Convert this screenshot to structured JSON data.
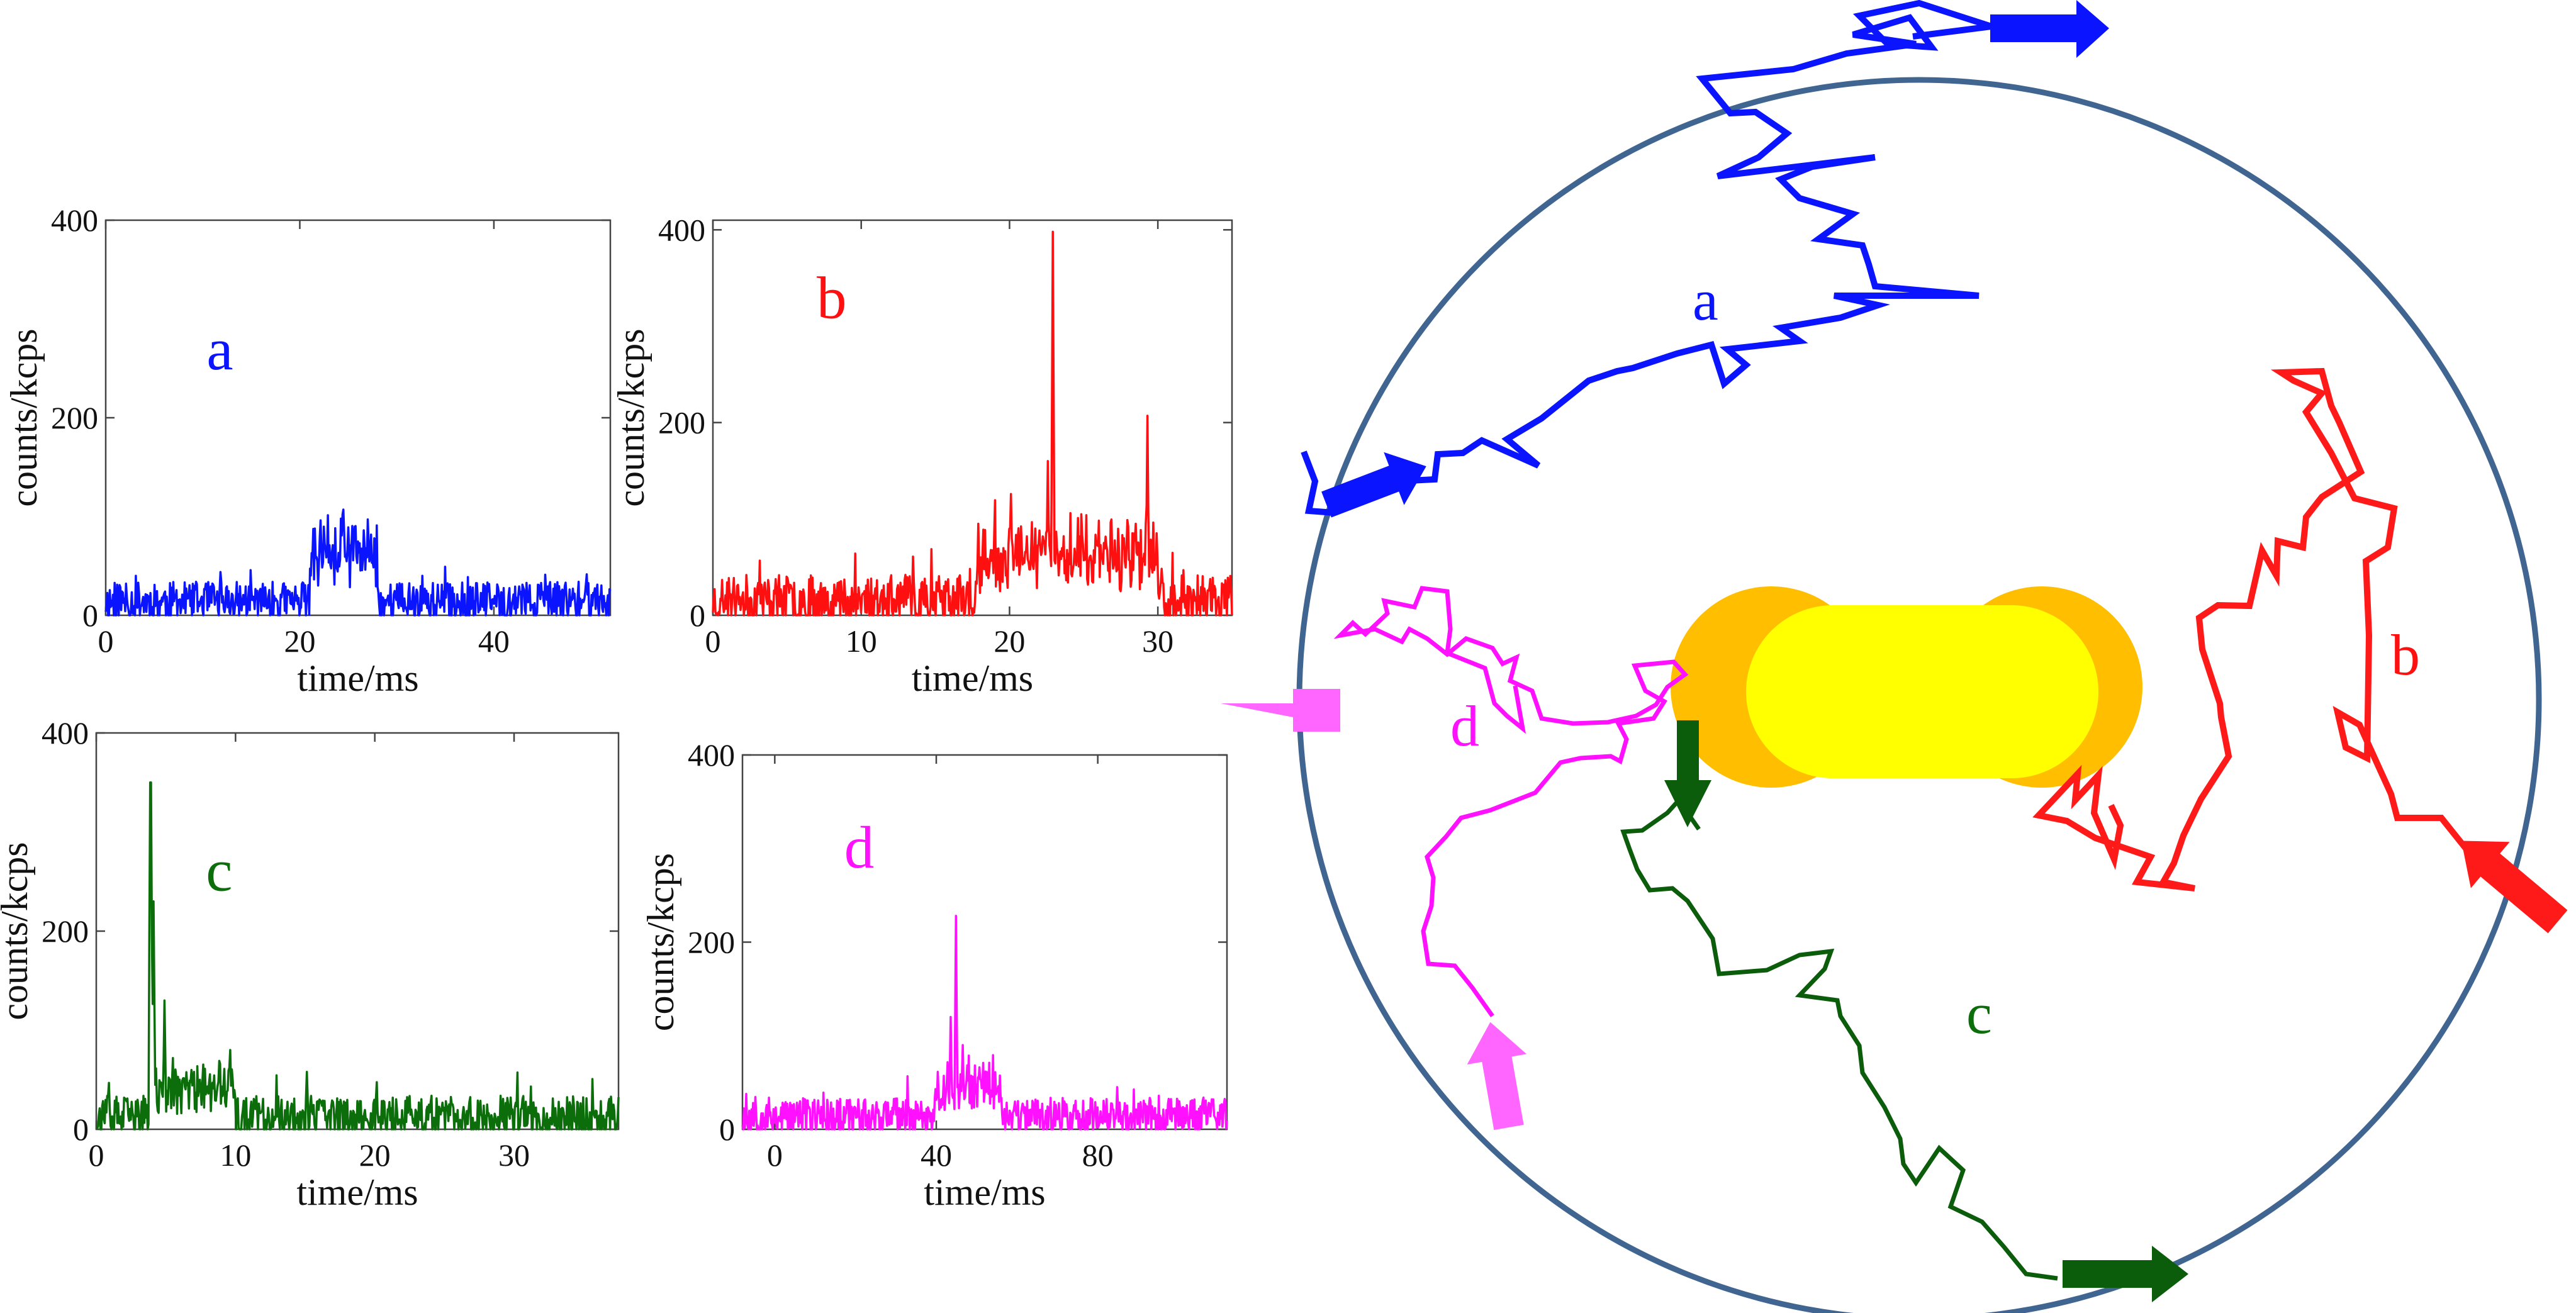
{
  "chart_data": [
    {
      "type": "line",
      "label": "a",
      "color": "#0a14ff",
      "xlabel": "time/ms",
      "ylabel": "counts/kcps",
      "xlim": [
        0,
        52
      ],
      "ylim": [
        0,
        400
      ],
      "xticks": [
        0,
        20,
        40
      ],
      "yticks": [
        0,
        200,
        400
      ],
      "burst": {
        "start": 21,
        "end": 28,
        "level": 55
      },
      "peaks": [
        {
          "x": 24.5,
          "y": 107
        }
      ],
      "baseline": {
        "level": 14,
        "amplitude": 20,
        "seed": 11
      },
      "samples": 620
    },
    {
      "type": "line",
      "label": "b",
      "color": "#ff1010",
      "xlabel": "time/ms",
      "ylabel": "counts/kcps",
      "xlim": [
        0,
        35
      ],
      "ylim": [
        0,
        410
      ],
      "xticks": [
        0,
        10,
        20,
        30
      ],
      "yticks": [
        0,
        200,
        400
      ],
      "burst": {
        "start": 17.8,
        "end": 30,
        "level": 50
      },
      "peaks": [
        {
          "x": 17.9,
          "y": 95
        },
        {
          "x": 22.9,
          "y": 398
        },
        {
          "x": 22.6,
          "y": 160
        },
        {
          "x": 29.3,
          "y": 207
        },
        {
          "x": 28.5,
          "y": 95
        }
      ],
      "baseline": {
        "level": 16,
        "amplitude": 26,
        "seed": 23
      },
      "samples": 620
    },
    {
      "type": "line",
      "label": "c",
      "color": "#0b6e0b",
      "xlabel": "time/ms",
      "ylabel": "counts/kcps",
      "xlim": [
        0,
        37.5
      ],
      "ylim": [
        0,
        400
      ],
      "xticks": [
        0,
        10,
        20,
        30
      ],
      "yticks": [
        0,
        200,
        400
      ],
      "burst": {
        "start": 4,
        "end": 10,
        "level": 30
      },
      "peaks": [
        {
          "x": 3.9,
          "y": 350
        },
        {
          "x": 4.1,
          "y": 230
        },
        {
          "x": 4.9,
          "y": 130
        },
        {
          "x": 9.6,
          "y": 80
        },
        {
          "x": 15.1,
          "y": 58
        }
      ],
      "baseline": {
        "level": 12,
        "amplitude": 22,
        "seed": 37
      },
      "samples": 620
    },
    {
      "type": "line",
      "label": "d",
      "color": "#ff10ff",
      "xlabel": "time/ms",
      "ylabel": "counts/kcps",
      "xlim": [
        -8,
        112
      ],
      "ylim": [
        0,
        400
      ],
      "xticks": [
        0,
        40,
        80
      ],
      "yticks": [
        0,
        200,
        400
      ],
      "burst": {
        "start": 40,
        "end": 56,
        "level": 35
      },
      "peaks": [
        {
          "x": 44.9,
          "y": 228
        },
        {
          "x": 43.5,
          "y": 120
        },
        {
          "x": 46.5,
          "y": 90
        }
      ],
      "baseline": {
        "level": 14,
        "amplitude": 20,
        "seed": 53
      },
      "samples": 640
    }
  ],
  "diagram": {
    "labels": [
      {
        "text": "a",
        "color": "#0a14ff"
      },
      {
        "text": "b",
        "color": "#ff1010"
      },
      {
        "text": "c",
        "color": "#0b6e0b"
      },
      {
        "text": "d",
        "color": "#ff10ff"
      }
    ],
    "colors": {
      "circle": "#3f6590",
      "nanorod_body": "#ffff00",
      "nanorod_cap": "#ffbf00",
      "arrow_a": "#0a14ff",
      "arrow_b": "#ff1a1a",
      "arrow_c": "#0b5c0b",
      "arrow_d": "#ff66ff"
    },
    "icons": [
      "laser-arrow-icon",
      "nanorod-icon",
      "trajectory-path"
    ]
  }
}
